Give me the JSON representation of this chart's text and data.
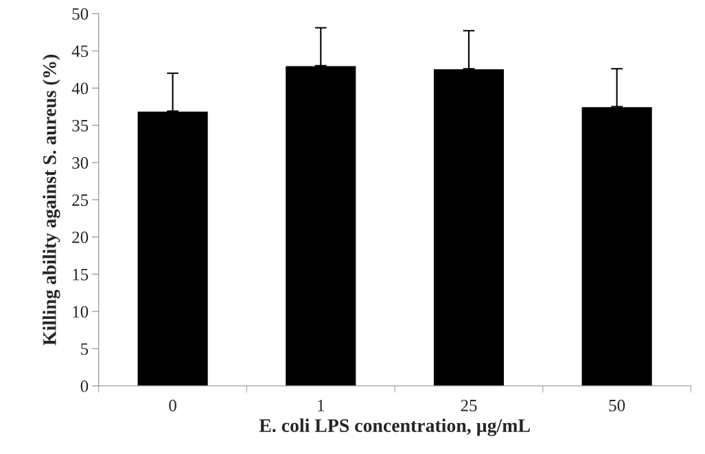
{
  "chart_data": {
    "type": "bar",
    "xlabel": "E. coli LPS concentration, µg/mL",
    "ylabel": "Killing ability against S. aureus (%)",
    "categories": [
      "0",
      "1",
      "25",
      "50"
    ],
    "values": [
      36.9,
      43.0,
      42.6,
      37.5
    ],
    "color": "#000000",
    "errors": [
      [
        36.9,
        42.0
      ],
      [
        43.0,
        48.1
      ],
      [
        42.6,
        47.7
      ],
      [
        37.5,
        42.6
      ]
    ],
    "ylim": [
      0,
      50
    ],
    "yticks": [
      0,
      5,
      10,
      15,
      20,
      25,
      30,
      35,
      40,
      45,
      50
    ],
    "grid": false,
    "legend": false
  }
}
